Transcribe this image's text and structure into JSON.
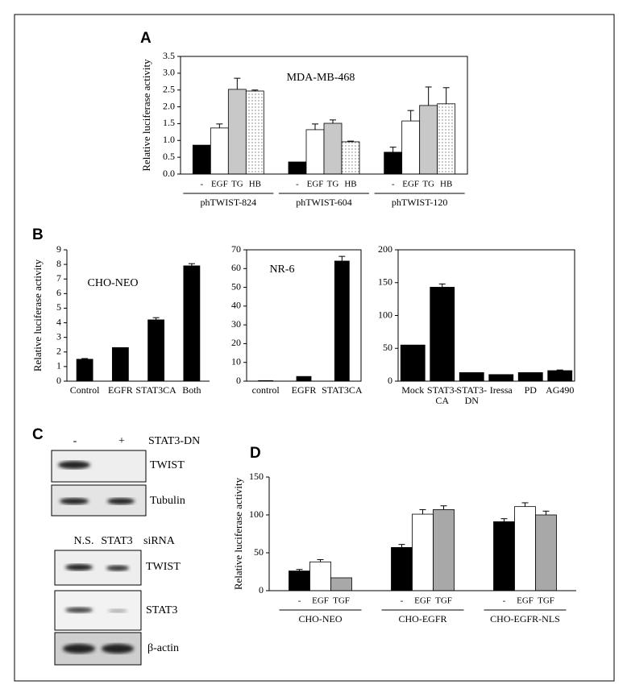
{
  "panels": {
    "a": "A",
    "b": "B",
    "c": "C",
    "d": "D"
  },
  "chart_data": [
    {
      "type": "bar",
      "ylabel": "Relative luciferase activity",
      "annotation": "MDA-MB-468",
      "ylim": [
        0,
        3.5
      ],
      "yticks": [
        {
          "value": 0,
          "label": "0.0"
        },
        0.5,
        {
          "value": 1,
          "label": "1.0"
        },
        1.5,
        {
          "value": 2,
          "label": "2.0"
        },
        2.5,
        {
          "value": 3,
          "label": "3.0"
        },
        3.5
      ],
      "categories": [
        "phTWIST-824",
        "phTWIST-604",
        "phTWIST-120"
      ],
      "series": [
        {
          "name": "-",
          "color": "#000000",
          "values": [
            0.86,
            0.36,
            0.65
          ],
          "errors": [
            null,
            null,
            0.15
          ]
        },
        {
          "name": "EGF",
          "color": "#ffffff",
          "values": [
            1.37,
            1.32,
            1.58
          ],
          "errors": [
            0.12,
            0.17,
            0.31
          ]
        },
        {
          "name": "TG",
          "color": "#c8c8c8",
          "values": [
            2.52,
            1.51,
            2.04
          ],
          "errors": [
            0.33,
            0.1,
            0.55
          ]
        },
        {
          "name": "HB",
          "color": "#ffffff",
          "pattern": "dots",
          "values": [
            2.47,
            0.96,
            2.09
          ],
          "errors": [
            0.03,
            0.02,
            0.48
          ]
        }
      ]
    },
    {
      "type": "bar",
      "ylabel": "Relative luciferase activity",
      "annotation": "CHO-NEO",
      "ylim": [
        0,
        9
      ],
      "yticks": [
        0,
        1,
        2,
        3,
        4,
        5,
        6,
        7,
        8,
        9
      ],
      "categories": [
        "Control",
        "EGFR",
        "STAT3CA",
        "Both"
      ],
      "color": "#000000",
      "values": [
        1.5,
        2.3,
        4.2,
        7.9
      ],
      "errors": [
        0.05,
        null,
        0.15,
        0.15
      ]
    },
    {
      "type": "bar",
      "annotation": "NR-6",
      "ylim": [
        0,
        70
      ],
      "yticks": [
        0,
        10,
        20,
        30,
        40,
        50,
        60,
        70
      ],
      "categories": [
        "control",
        "EGFR",
        "STAT3CA"
      ],
      "color": "#000000",
      "values": [
        0.3,
        2.5,
        64
      ],
      "errors": [
        null,
        null,
        2.5
      ]
    },
    {
      "type": "bar",
      "ylim": [
        0,
        200
      ],
      "yticks": [
        0,
        50,
        100,
        150,
        200
      ],
      "categories": [
        "Mock",
        "STAT3-\nCA",
        "STAT3-\nDN",
        "Iressa",
        "PD",
        "AG490"
      ],
      "color": "#000000",
      "values": [
        55,
        143,
        13,
        10,
        13,
        16
      ],
      "errors": [
        null,
        5,
        null,
        null,
        null,
        1
      ]
    },
    {
      "type": "bar",
      "ylabel": "Relative luciferase activity",
      "ylim": [
        0,
        150
      ],
      "yticks": [
        0,
        50,
        100,
        150
      ],
      "categories": [
        "CHO-NEO",
        "CHO-EGFR",
        "CHO-EGFR-NLS"
      ],
      "series": [
        {
          "name": "-",
          "color": "#000000",
          "values": [
            26,
            57,
            91
          ],
          "errors": [
            2,
            4,
            4
          ]
        },
        {
          "name": "EGF",
          "color": "#ffffff",
          "values": [
            38,
            101,
            111
          ],
          "errors": [
            3,
            6,
            5
          ]
        },
        {
          "name": "TGF",
          "color": "#a8a8a8",
          "values": [
            17,
            107,
            100
          ],
          "errors": [
            null,
            5,
            5
          ]
        }
      ]
    }
  ],
  "blots": {
    "top": {
      "lanes": [
        "-",
        "+"
      ],
      "treatment": "STAT3-DN",
      "rows": [
        "TWIST",
        "Tubulin"
      ]
    },
    "bottom": {
      "lanes": [
        "N.S.",
        "STAT3"
      ],
      "treatment": "siRNA",
      "rows": [
        "TWIST",
        "STAT3",
        "β-actin"
      ]
    }
  }
}
